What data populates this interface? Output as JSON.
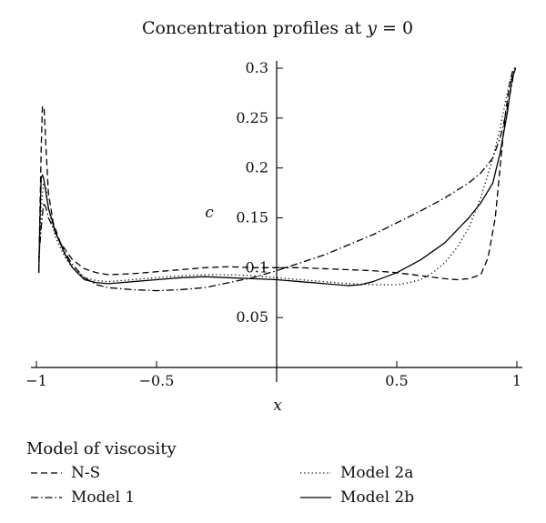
{
  "chart_data": {
    "type": "line",
    "title": "Concentration profiles at ",
    "title_var": "y",
    "title_suffix": " = 0",
    "xlabel": "x",
    "ylabel": "c",
    "xlim": [
      -1,
      1
    ],
    "ylim": [
      0,
      0.3
    ],
    "x_ticks": [
      {
        "value": -1,
        "label": "−1"
      },
      {
        "value": -0.5,
        "label": "−0.5"
      },
      {
        "value": 0.5,
        "label": "0.5"
      },
      {
        "value": 1,
        "label": "1"
      }
    ],
    "y_ticks": [
      {
        "value": 0.05,
        "label": "0.05"
      },
      {
        "value": 0.1,
        "label": "0.1"
      },
      {
        "value": 0.15,
        "label": "0.15"
      },
      {
        "value": 0.2,
        "label": "0.2"
      },
      {
        "value": 0.25,
        "label": "0.25"
      },
      {
        "value": 0.3,
        "label": "0.3"
      }
    ],
    "legend": {
      "title": "Model of viscosity",
      "placement": "bottom"
    },
    "series": [
      {
        "name": "N-S",
        "dash": "dashed",
        "points": [
          [
            -0.99,
            0.095
          ],
          [
            -0.985,
            0.16
          ],
          [
            -0.98,
            0.22
          ],
          [
            -0.975,
            0.262
          ],
          [
            -0.968,
            0.26
          ],
          [
            -0.96,
            0.22
          ],
          [
            -0.95,
            0.175
          ],
          [
            -0.93,
            0.145
          ],
          [
            -0.9,
            0.125
          ],
          [
            -0.85,
            0.108
          ],
          [
            -0.8,
            0.099
          ],
          [
            -0.75,
            0.095
          ],
          [
            -0.7,
            0.093
          ],
          [
            -0.6,
            0.094
          ],
          [
            -0.5,
            0.096
          ],
          [
            -0.4,
            0.098
          ],
          [
            -0.3,
            0.1
          ],
          [
            -0.2,
            0.101
          ],
          [
            -0.1,
            0.1
          ],
          [
            0,
            0.1
          ],
          [
            0.1,
            0.1
          ],
          [
            0.2,
            0.099
          ],
          [
            0.3,
            0.098
          ],
          [
            0.4,
            0.097
          ],
          [
            0.5,
            0.095
          ],
          [
            0.6,
            0.092
          ],
          [
            0.7,
            0.089
          ],
          [
            0.75,
            0.088
          ],
          [
            0.8,
            0.089
          ],
          [
            0.85,
            0.093
          ],
          [
            0.88,
            0.11
          ],
          [
            0.91,
            0.15
          ],
          [
            0.93,
            0.2
          ],
          [
            0.95,
            0.25
          ],
          [
            0.97,
            0.285
          ],
          [
            0.985,
            0.3
          ],
          [
            0.995,
            0.3
          ]
        ]
      },
      {
        "name": "Model 1",
        "dash": "dashdot",
        "points": [
          [
            -0.99,
            0.11
          ],
          [
            -0.98,
            0.14
          ],
          [
            -0.97,
            0.165
          ],
          [
            -0.96,
            0.16
          ],
          [
            -0.95,
            0.15
          ],
          [
            -0.92,
            0.135
          ],
          [
            -0.88,
            0.115
          ],
          [
            -0.85,
            0.103
          ],
          [
            -0.8,
            0.09
          ],
          [
            -0.75,
            0.083
          ],
          [
            -0.7,
            0.08
          ],
          [
            -0.6,
            0.078
          ],
          [
            -0.5,
            0.077
          ],
          [
            -0.4,
            0.078
          ],
          [
            -0.3,
            0.08
          ],
          [
            -0.2,
            0.085
          ],
          [
            -0.1,
            0.09
          ],
          [
            0,
            0.097
          ],
          [
            0.1,
            0.105
          ],
          [
            0.2,
            0.113
          ],
          [
            0.3,
            0.123
          ],
          [
            0.4,
            0.133
          ],
          [
            0.5,
            0.145
          ],
          [
            0.6,
            0.157
          ],
          [
            0.7,
            0.17
          ],
          [
            0.8,
            0.185
          ],
          [
            0.85,
            0.195
          ],
          [
            0.9,
            0.21
          ],
          [
            0.93,
            0.23
          ],
          [
            0.96,
            0.26
          ],
          [
            0.98,
            0.285
          ],
          [
            0.99,
            0.3
          ],
          [
            0.995,
            0.3
          ]
        ]
      },
      {
        "name": "Model 2a",
        "dash": "dotted",
        "points": [
          [
            -0.99,
            0.095
          ],
          [
            -0.98,
            0.16
          ],
          [
            -0.97,
            0.185
          ],
          [
            -0.96,
            0.18
          ],
          [
            -0.95,
            0.16
          ],
          [
            -0.92,
            0.13
          ],
          [
            -0.88,
            0.11
          ],
          [
            -0.85,
            0.1
          ],
          [
            -0.8,
            0.09
          ],
          [
            -0.75,
            0.087
          ],
          [
            -0.7,
            0.086
          ],
          [
            -0.6,
            0.088
          ],
          [
            -0.5,
            0.09
          ],
          [
            -0.4,
            0.092
          ],
          [
            -0.3,
            0.093
          ],
          [
            -0.2,
            0.093
          ],
          [
            -0.1,
            0.092
          ],
          [
            0,
            0.09
          ],
          [
            0.1,
            0.088
          ],
          [
            0.2,
            0.086
          ],
          [
            0.3,
            0.084
          ],
          [
            0.4,
            0.083
          ],
          [
            0.5,
            0.083
          ],
          [
            0.55,
            0.085
          ],
          [
            0.6,
            0.088
          ],
          [
            0.65,
            0.095
          ],
          [
            0.7,
            0.105
          ],
          [
            0.75,
            0.12
          ],
          [
            0.8,
            0.14
          ],
          [
            0.85,
            0.17
          ],
          [
            0.9,
            0.21
          ],
          [
            0.93,
            0.24
          ],
          [
            0.96,
            0.275
          ],
          [
            0.98,
            0.295
          ],
          [
            0.995,
            0.3
          ]
        ]
      },
      {
        "name": "Model 2b",
        "dash": "solid",
        "points": [
          [
            -0.99,
            0.095
          ],
          [
            -0.985,
            0.15
          ],
          [
            -0.98,
            0.19
          ],
          [
            -0.975,
            0.193
          ],
          [
            -0.97,
            0.19
          ],
          [
            -0.96,
            0.175
          ],
          [
            -0.95,
            0.16
          ],
          [
            -0.92,
            0.135
          ],
          [
            -0.88,
            0.113
          ],
          [
            -0.85,
            0.1
          ],
          [
            -0.8,
            0.088
          ],
          [
            -0.75,
            0.085
          ],
          [
            -0.7,
            0.084
          ],
          [
            -0.6,
            0.086
          ],
          [
            -0.5,
            0.088
          ],
          [
            -0.4,
            0.09
          ],
          [
            -0.3,
            0.091
          ],
          [
            -0.2,
            0.09
          ],
          [
            -0.1,
            0.089
          ],
          [
            0,
            0.088
          ],
          [
            0.1,
            0.086
          ],
          [
            0.2,
            0.084
          ],
          [
            0.3,
            0.082
          ],
          [
            0.35,
            0.083
          ],
          [
            0.4,
            0.086
          ],
          [
            0.5,
            0.095
          ],
          [
            0.6,
            0.108
          ],
          [
            0.7,
            0.125
          ],
          [
            0.8,
            0.15
          ],
          [
            0.85,
            0.165
          ],
          [
            0.9,
            0.185
          ],
          [
            0.93,
            0.215
          ],
          [
            0.96,
            0.255
          ],
          [
            0.98,
            0.29
          ],
          [
            0.995,
            0.3
          ]
        ]
      }
    ]
  }
}
